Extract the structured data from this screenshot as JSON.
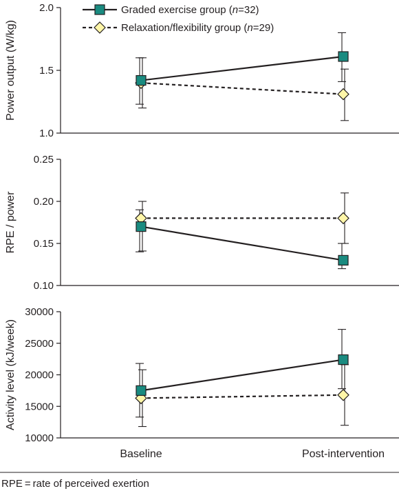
{
  "legend": [
    {
      "label_prefix": "Graded exercise group (",
      "n_symbol": "n",
      "label_suffix": "=32)"
    },
    {
      "label_prefix": "Relaxation/flexibility group (",
      "n_symbol": "n",
      "label_suffix": "=29)"
    }
  ],
  "colors": {
    "graded_marker": "#1a8b80",
    "relax_marker": "#fff6a8",
    "line": "#231f20"
  },
  "footnote": "RPE = rate of perceived exertion",
  "chart_data": [
    {
      "type": "line",
      "ylabel": "Power output (W/kg)",
      "categories": [
        "Baseline",
        "Post-intervention"
      ],
      "ylim": [
        1.0,
        2.0
      ],
      "yticks": [
        "1.0",
        "1.5",
        "2.0"
      ],
      "ytick_values": [
        1.0,
        1.5,
        2.0
      ],
      "series": [
        {
          "name": "Graded exercise group (n=32)",
          "marker": "square",
          "dash": "solid",
          "values": [
            1.42,
            1.61
          ],
          "err_low": [
            1.23,
            1.41
          ],
          "err_high": [
            1.6,
            1.8
          ]
        },
        {
          "name": "Relaxation/flexibility group (n=29)",
          "marker": "diamond",
          "dash": "dashed",
          "values": [
            1.4,
            1.31
          ],
          "err_low": [
            1.2,
            1.1
          ],
          "err_high": [
            1.6,
            1.51
          ]
        }
      ]
    },
    {
      "type": "line",
      "ylabel": "RPE / power",
      "categories": [
        "Baseline",
        "Post-intervention"
      ],
      "ylim": [
        0.1,
        0.25
      ],
      "yticks": [
        "0.10",
        "0.15",
        "0.20",
        "0.25"
      ],
      "ytick_values": [
        0.1,
        0.15,
        0.2,
        0.25
      ],
      "series": [
        {
          "name": "Graded exercise group (n=32)",
          "marker": "square",
          "dash": "solid",
          "values": [
            0.17,
            0.13
          ],
          "err_low": [
            0.14,
            0.12
          ],
          "err_high": [
            0.19,
            0.15
          ]
        },
        {
          "name": "Relaxation/flexibility group (n=29)",
          "marker": "diamond",
          "dash": "dashed",
          "values": [
            0.18,
            0.18
          ],
          "err_low": [
            0.141,
            0.15
          ],
          "err_high": [
            0.2,
            0.21
          ]
        }
      ]
    },
    {
      "type": "line",
      "ylabel": "Activity level (kJ/week)",
      "categories": [
        "Baseline",
        "Post-intervention"
      ],
      "ylim": [
        10000,
        30000
      ],
      "yticks": [
        "10000",
        "15000",
        "20000",
        "25000",
        "30000"
      ],
      "ytick_values": [
        10000,
        15000,
        20000,
        25000,
        30000
      ],
      "series": [
        {
          "name": "Graded exercise group (n=32)",
          "marker": "square",
          "dash": "solid",
          "values": [
            17500,
            22400
          ],
          "err_low": [
            13300,
            17800
          ],
          "err_high": [
            21800,
            27200
          ]
        },
        {
          "name": "Relaxation/flexibility group (n=29)",
          "marker": "diamond",
          "dash": "dashed",
          "values": [
            16300,
            16800
          ],
          "err_low": [
            11800,
            12000
          ],
          "err_high": [
            20800,
            21600
          ]
        }
      ]
    }
  ]
}
